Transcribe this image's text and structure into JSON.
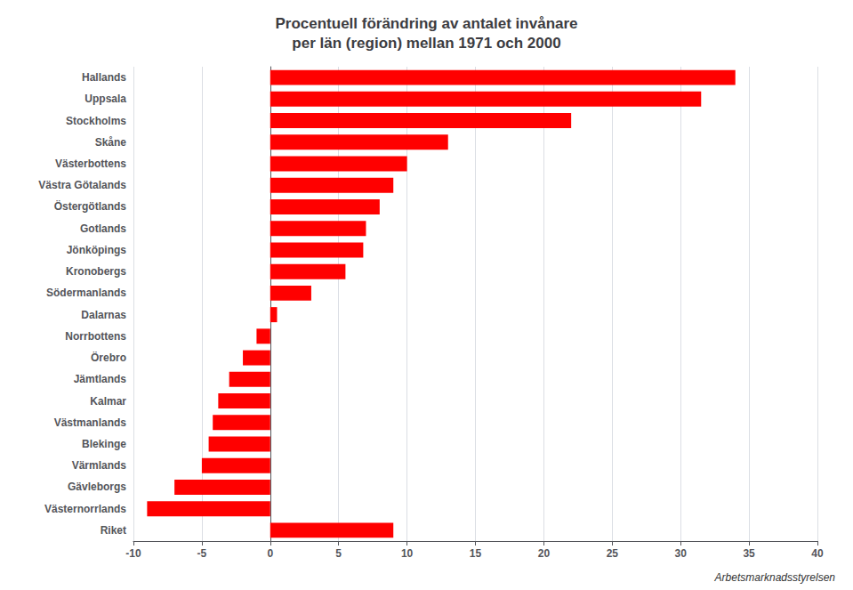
{
  "chart_data": {
    "type": "bar",
    "orientation": "horizontal",
    "title": "Procentuell förändring av antalet invånare",
    "subtitle": "per län (region) mellan 1971 och 2000",
    "categories": [
      "Hallands",
      "Uppsala",
      "Stockholms",
      "Skåne",
      "Västerbottens",
      "Västra Götalands",
      "Östergötlands",
      "Gotlands",
      "Jönköpings",
      "Kronobergs",
      "Södermanlands",
      "Dalarnas",
      "Norrbottens",
      "Örebro",
      "Jämtlands",
      "Kalmar",
      "Västmanlands",
      "Blekinge",
      "Värmlands",
      "Gävleborgs",
      "Västernorrlands",
      "Riket"
    ],
    "values": [
      34.0,
      31.5,
      22.0,
      13.0,
      10.0,
      9.0,
      8.0,
      7.0,
      6.8,
      5.5,
      3.0,
      0.5,
      -1.0,
      -2.0,
      -3.0,
      -3.8,
      -4.2,
      -4.5,
      -5.0,
      -7.0,
      -9.0,
      9.0
    ],
    "color": "#ff0000",
    "xlim": [
      -10,
      40
    ],
    "xticks": [
      -10,
      -5,
      0,
      5,
      10,
      15,
      20,
      25,
      30,
      35,
      40
    ],
    "grid": true,
    "annotations": [
      "Arbetsmarknadsstyrelsen"
    ]
  }
}
